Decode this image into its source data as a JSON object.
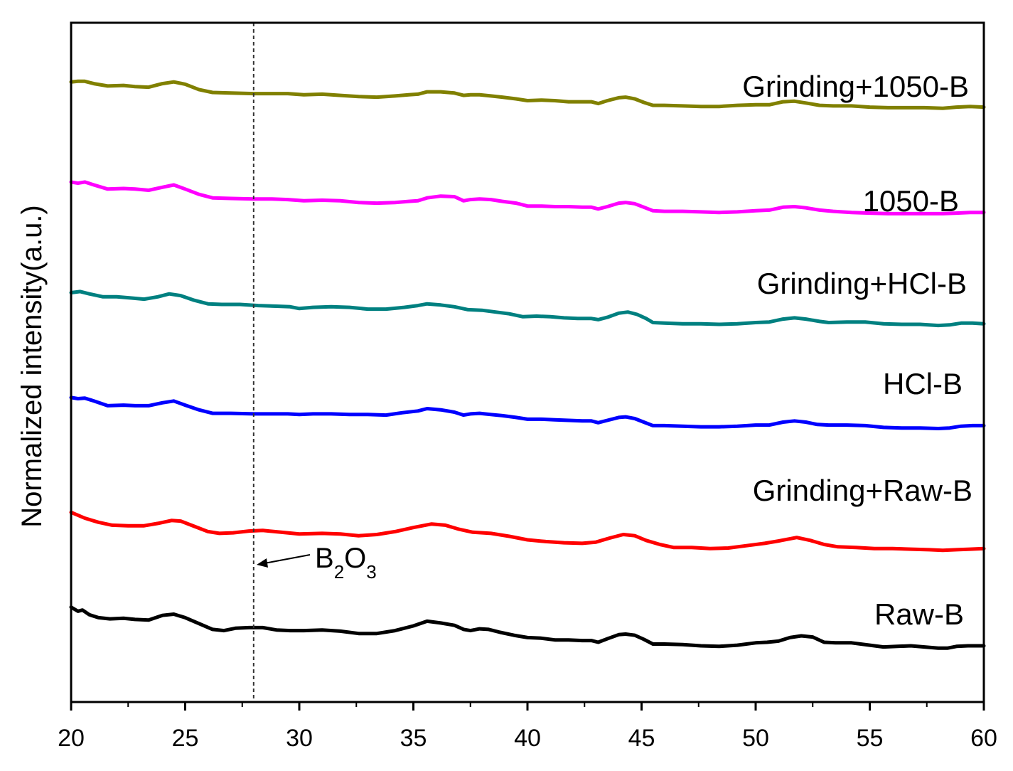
{
  "chart_data": {
    "type": "line",
    "title": "",
    "xlabel": "",
    "ylabel": "Normalized intensity(a.u.)",
    "xlim": [
      20,
      60
    ],
    "xticks": [
      20,
      25,
      30,
      35,
      40,
      45,
      50,
      55,
      60
    ],
    "grid": false,
    "reference_line": {
      "x": 28,
      "style": "dashed"
    },
    "annotation": {
      "base1": "B",
      "sub1": "2",
      "base2": "O",
      "sub2": "3",
      "points_to_x": 28
    },
    "y_units": "arbitrary (normalized, vertically offset)",
    "series": [
      {
        "name": "Raw-B",
        "color": "#000000",
        "x": [
          20,
          20.3,
          20.5,
          20.8,
          21.2,
          21.7,
          22.3,
          22.8,
          23.4,
          24,
          24.5,
          25,
          25.6,
          26.2,
          26.7,
          27.2,
          27.8,
          28.4,
          29,
          29.6,
          30.2,
          31,
          31.8,
          32.6,
          33.4,
          34.2,
          35,
          35.6,
          36.2,
          36.8,
          37.2,
          37.5,
          37.9,
          38.3,
          38.8,
          39.4,
          40,
          40.6,
          41.2,
          41.8,
          42.4,
          42.8,
          43.1,
          43.5,
          44,
          44.3,
          44.7,
          45.1,
          45.5,
          46,
          46.8,
          47.6,
          48.4,
          49.2,
          50,
          50.5,
          51,
          51.5,
          52,
          52.5,
          53,
          53.5,
          54.2,
          55,
          55.6,
          56.2,
          56.8,
          57.4,
          58,
          58.4,
          58.8,
          59.3,
          60
        ],
        "y": [
          5.62,
          5.55,
          5.57,
          5.49,
          5.44,
          5.42,
          5.43,
          5.41,
          5.4,
          5.48,
          5.5,
          5.44,
          5.34,
          5.24,
          5.22,
          5.26,
          5.27,
          5.27,
          5.23,
          5.22,
          5.22,
          5.23,
          5.21,
          5.17,
          5.17,
          5.22,
          5.3,
          5.38,
          5.35,
          5.31,
          5.24,
          5.22,
          5.25,
          5.24,
          5.19,
          5.14,
          5.1,
          5.09,
          5.06,
          5.06,
          5.05,
          5.05,
          5.02,
          5.08,
          5.15,
          5.16,
          5.14,
          5.07,
          4.99,
          4.99,
          4.98,
          4.96,
          4.95,
          4.97,
          5.01,
          5.02,
          5.04,
          5.1,
          5.13,
          5.11,
          5.02,
          5.01,
          5.01,
          4.97,
          4.94,
          4.95,
          4.96,
          4.94,
          4.92,
          4.92,
          4.95,
          4.96,
          4.96
        ]
      },
      {
        "name": "Grinding+Raw-B",
        "color": "#ff0000",
        "x": [
          20,
          20.6,
          21.2,
          21.8,
          22.5,
          23.2,
          23.8,
          24.4,
          24.8,
          25.4,
          26,
          26.5,
          27.1,
          27.8,
          28.4,
          29.2,
          30,
          31,
          31.8,
          32.6,
          33.4,
          34.2,
          35,
          35.8,
          36.4,
          37,
          37.6,
          38.4,
          39.2,
          40,
          40.8,
          41.6,
          42.4,
          43,
          43.6,
          44.2,
          44.7,
          45.2,
          45.8,
          46.4,
          47.2,
          48,
          48.8,
          49.6,
          50.4,
          51,
          51.8,
          52.4,
          53,
          53.6,
          54.4,
          55.2,
          56,
          56.8,
          57.6,
          58.2,
          58.8,
          59.4,
          60
        ],
        "y": [
          7.24,
          7.14,
          7.07,
          7.02,
          7.01,
          7.01,
          7.05,
          7.1,
          7.09,
          7.0,
          6.91,
          6.88,
          6.89,
          6.92,
          6.93,
          6.9,
          6.87,
          6.88,
          6.87,
          6.84,
          6.86,
          6.91,
          6.98,
          7.04,
          7.02,
          6.95,
          6.9,
          6.88,
          6.83,
          6.77,
          6.74,
          6.72,
          6.71,
          6.73,
          6.8,
          6.86,
          6.84,
          6.76,
          6.69,
          6.64,
          6.64,
          6.62,
          6.63,
          6.67,
          6.71,
          6.75,
          6.81,
          6.76,
          6.69,
          6.65,
          6.64,
          6.62,
          6.62,
          6.61,
          6.6,
          6.59,
          6.6,
          6.61,
          6.62
        ]
      },
      {
        "name": "HCl-B",
        "color": "#0000ff",
        "x": [
          20,
          20.3,
          20.6,
          21,
          21.6,
          22.3,
          22.8,
          23.4,
          24,
          24.5,
          25,
          25.6,
          26.2,
          27,
          28,
          28.8,
          29.5,
          30,
          30.6,
          31.4,
          32.2,
          33,
          33.8,
          34.5,
          35.2,
          35.6,
          36.2,
          36.8,
          37.2,
          37.5,
          37.9,
          38.4,
          38.9,
          39.5,
          40,
          40.6,
          41.2,
          41.8,
          42.4,
          42.8,
          43.1,
          43.5,
          44,
          44.3,
          44.7,
          45.1,
          45.5,
          46,
          46.8,
          47.6,
          48.4,
          49.2,
          50,
          50.6,
          51.2,
          51.7,
          52.2,
          52.7,
          53.2,
          54,
          54.8,
          55.6,
          56.4,
          57.2,
          58,
          58.5,
          59,
          59.5,
          60
        ],
        "y": [
          9.2,
          9.18,
          9.19,
          9.14,
          9.06,
          9.07,
          9.06,
          9.06,
          9.11,
          9.14,
          9.07,
          8.99,
          8.93,
          8.93,
          8.92,
          8.92,
          8.92,
          8.91,
          8.92,
          8.92,
          8.91,
          8.91,
          8.9,
          8.94,
          8.97,
          9.01,
          8.99,
          8.95,
          8.9,
          8.92,
          8.93,
          8.91,
          8.89,
          8.86,
          8.83,
          8.83,
          8.82,
          8.81,
          8.8,
          8.8,
          8.77,
          8.81,
          8.86,
          8.87,
          8.84,
          8.78,
          8.72,
          8.72,
          8.71,
          8.7,
          8.7,
          8.71,
          8.73,
          8.73,
          8.78,
          8.8,
          8.78,
          8.74,
          8.73,
          8.73,
          8.72,
          8.69,
          8.68,
          8.68,
          8.67,
          8.68,
          8.71,
          8.72,
          8.72
        ]
      },
      {
        "name": "Grinding+HCl-B",
        "color": "#008080",
        "x": [
          20,
          20.4,
          20.8,
          21.4,
          22,
          22.6,
          23.2,
          23.8,
          24.3,
          24.8,
          25.4,
          26,
          26.6,
          27.4,
          28.2,
          29,
          29.6,
          30,
          30.6,
          31.4,
          32.2,
          33,
          33.8,
          34.6,
          35.2,
          35.6,
          36.2,
          36.8,
          37.4,
          38,
          38.6,
          39.2,
          39.8,
          40.4,
          41,
          41.6,
          42.2,
          42.8,
          43.1,
          43.5,
          44,
          44.4,
          44.8,
          45.2,
          45.5,
          46,
          46.8,
          47.6,
          48.4,
          49.2,
          50,
          50.6,
          51.2,
          51.7,
          52.2,
          52.8,
          53.2,
          54,
          54.8,
          55.6,
          56.4,
          57.2,
          58,
          58.5,
          59,
          59.5,
          60
        ],
        "y": [
          10.99,
          11.01,
          10.97,
          10.92,
          10.92,
          10.9,
          10.88,
          10.92,
          10.97,
          10.94,
          10.86,
          10.8,
          10.79,
          10.79,
          10.77,
          10.76,
          10.75,
          10.72,
          10.74,
          10.75,
          10.74,
          10.71,
          10.71,
          10.74,
          10.77,
          10.8,
          10.78,
          10.75,
          10.7,
          10.69,
          10.66,
          10.63,
          10.58,
          10.59,
          10.58,
          10.56,
          10.55,
          10.55,
          10.53,
          10.57,
          10.64,
          10.66,
          10.62,
          10.55,
          10.48,
          10.47,
          10.46,
          10.46,
          10.45,
          10.46,
          10.48,
          10.49,
          10.54,
          10.56,
          10.54,
          10.5,
          10.48,
          10.49,
          10.49,
          10.46,
          10.45,
          10.45,
          10.43,
          10.44,
          10.47,
          10.47,
          10.46
        ]
      },
      {
        "name": "1050-B",
        "color": "#ff00ff",
        "x": [
          20,
          20.3,
          20.6,
          21,
          21.6,
          22.3,
          22.8,
          23.4,
          24,
          24.5,
          25,
          25.6,
          26.2,
          27,
          28,
          28.8,
          29.5,
          30.2,
          31,
          31.8,
          32.6,
          33.4,
          34.2,
          34.8,
          35.2,
          35.6,
          36.2,
          36.8,
          37.2,
          37.5,
          37.9,
          38.4,
          38.9,
          39.5,
          40,
          40.6,
          41.2,
          41.8,
          42.4,
          42.8,
          43.1,
          43.5,
          44,
          44.3,
          44.7,
          45.1,
          45.5,
          46,
          46.8,
          47.6,
          48.4,
          49.2,
          50,
          50.6,
          51.2,
          51.7,
          52.2,
          52.8,
          53.4,
          54.2,
          55,
          55.8,
          56.6,
          57.4,
          58.2,
          58.8,
          59.4,
          60
        ],
        "y": [
          12.88,
          12.86,
          12.88,
          12.83,
          12.76,
          12.77,
          12.76,
          12.74,
          12.79,
          12.83,
          12.76,
          12.67,
          12.61,
          12.6,
          12.59,
          12.59,
          12.58,
          12.56,
          12.57,
          12.56,
          12.53,
          12.52,
          12.53,
          12.55,
          12.56,
          12.61,
          12.64,
          12.63,
          12.56,
          12.58,
          12.59,
          12.58,
          12.55,
          12.52,
          12.47,
          12.47,
          12.46,
          12.46,
          12.45,
          12.45,
          12.42,
          12.46,
          12.52,
          12.53,
          12.51,
          12.45,
          12.39,
          12.38,
          12.38,
          12.37,
          12.36,
          12.37,
          12.39,
          12.4,
          12.45,
          12.46,
          12.44,
          12.4,
          12.38,
          12.36,
          12.35,
          12.34,
          12.34,
          12.34,
          12.34,
          12.35,
          12.36,
          12.36
        ]
      },
      {
        "name": "Grinding+1050-B",
        "color": "#808000",
        "x": [
          20,
          20.3,
          20.6,
          21,
          21.6,
          22.3,
          22.8,
          23.4,
          24,
          24.5,
          25,
          25.6,
          26.2,
          27,
          28,
          28.8,
          29.5,
          30.2,
          31,
          31.8,
          32.6,
          33.4,
          34.2,
          34.8,
          35.2,
          35.6,
          36.2,
          36.8,
          37.2,
          37.5,
          37.9,
          38.4,
          38.9,
          39.5,
          40,
          40.6,
          41.2,
          41.8,
          42.4,
          42.8,
          43.1,
          43.5,
          44,
          44.3,
          44.7,
          45.1,
          45.5,
          46,
          46.8,
          47.6,
          48.4,
          49.2,
          50,
          50.6,
          51.2,
          51.7,
          52.2,
          52.8,
          53.4,
          54.2,
          55,
          55.8,
          56.6,
          57.4,
          58.2,
          58.8,
          59.4,
          60
        ],
        "y": [
          14.59,
          14.6,
          14.6,
          14.56,
          14.52,
          14.53,
          14.51,
          14.5,
          14.56,
          14.59,
          14.55,
          14.46,
          14.41,
          14.4,
          14.39,
          14.39,
          14.39,
          14.37,
          14.38,
          14.36,
          14.34,
          14.33,
          14.35,
          14.37,
          14.38,
          14.42,
          14.42,
          14.4,
          14.36,
          14.37,
          14.37,
          14.35,
          14.33,
          14.3,
          14.27,
          14.28,
          14.27,
          14.25,
          14.25,
          14.25,
          14.22,
          14.27,
          14.32,
          14.33,
          14.3,
          14.24,
          14.19,
          14.19,
          14.18,
          14.17,
          14.17,
          14.19,
          14.2,
          14.2,
          14.25,
          14.26,
          14.23,
          14.19,
          14.18,
          14.18,
          14.16,
          14.15,
          14.15,
          14.15,
          14.14,
          14.16,
          14.17,
          14.16
        ]
      }
    ]
  }
}
